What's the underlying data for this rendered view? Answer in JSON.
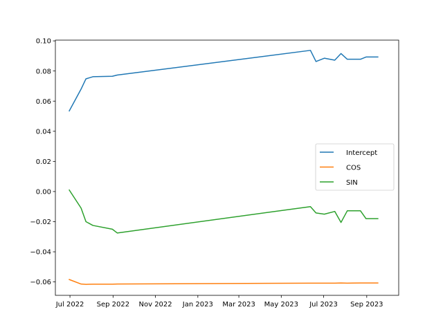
{
  "chart_data": {
    "type": "line",
    "title": "",
    "xlabel": "",
    "ylabel": "",
    "xlim": [
      "2022-06-10",
      "2023-10-17"
    ],
    "ylim": [
      -0.0689,
      0.1005
    ],
    "x_ticks": [
      {
        "date": "2022-07-01",
        "label": "Jul 2022"
      },
      {
        "date": "2022-09-01",
        "label": "Sep 2022"
      },
      {
        "date": "2022-11-01",
        "label": "Nov 2022"
      },
      {
        "date": "2023-01-01",
        "label": "Jan 2023"
      },
      {
        "date": "2023-03-01",
        "label": "Mar 2023"
      },
      {
        "date": "2023-05-01",
        "label": "May 2023"
      },
      {
        "date": "2023-07-01",
        "label": "Jul 2023"
      },
      {
        "date": "2023-09-01",
        "label": "Sep 2023"
      }
    ],
    "y_ticks": [
      {
        "value": 0.1,
        "label": "0.10"
      },
      {
        "value": 0.08,
        "label": "0.08"
      },
      {
        "value": 0.06,
        "label": "0.06"
      },
      {
        "value": 0.04,
        "label": "0.04"
      },
      {
        "value": 0.02,
        "label": "0.02"
      },
      {
        "value": 0.0,
        "label": "0.00"
      },
      {
        "value": -0.02,
        "label": "−0.02"
      },
      {
        "value": -0.04,
        "label": "−0.04"
      },
      {
        "value": -0.06,
        "label": "−0.06"
      }
    ],
    "grid": false,
    "legend_position": "center-right",
    "series": [
      {
        "name": "Intercept",
        "color": "#1f77b4",
        "points": [
          [
            "2022-06-30",
            0.0535
          ],
          [
            "2022-07-17",
            0.068
          ],
          [
            "2022-07-24",
            0.0748
          ],
          [
            "2022-08-03",
            0.0762
          ],
          [
            "2022-08-31",
            0.0765
          ],
          [
            "2022-09-07",
            0.0773
          ],
          [
            "2023-06-12",
            0.0937
          ],
          [
            "2023-06-20",
            0.0863
          ],
          [
            "2023-07-02",
            0.0885
          ],
          [
            "2023-07-17",
            0.0872
          ],
          [
            "2023-07-26",
            0.0916
          ],
          [
            "2023-08-04",
            0.0878
          ],
          [
            "2023-08-23",
            0.0878
          ],
          [
            "2023-08-31",
            0.0893
          ],
          [
            "2023-09-17",
            0.0893
          ]
        ]
      },
      {
        "name": "COS",
        "color": "#ff7f0e",
        "points": [
          [
            "2022-06-30",
            -0.0584
          ],
          [
            "2022-07-17",
            -0.0614
          ],
          [
            "2022-07-24",
            -0.0616
          ],
          [
            "2022-08-03",
            -0.0615
          ],
          [
            "2022-08-31",
            -0.0615
          ],
          [
            "2022-09-07",
            -0.0614
          ],
          [
            "2023-06-12",
            -0.0608
          ],
          [
            "2023-06-20",
            -0.0608
          ],
          [
            "2023-07-02",
            -0.0608
          ],
          [
            "2023-07-17",
            -0.0608
          ],
          [
            "2023-07-26",
            -0.0607
          ],
          [
            "2023-08-04",
            -0.0608
          ],
          [
            "2023-08-23",
            -0.0607
          ],
          [
            "2023-08-31",
            -0.0607
          ],
          [
            "2023-09-17",
            -0.0607
          ]
        ]
      },
      {
        "name": "SIN",
        "color": "#2ca02c",
        "points": [
          [
            "2022-06-30",
            0.001
          ],
          [
            "2022-07-17",
            -0.011
          ],
          [
            "2022-07-24",
            -0.02
          ],
          [
            "2022-08-03",
            -0.0225
          ],
          [
            "2022-08-31",
            -0.025
          ],
          [
            "2022-09-07",
            -0.0275
          ],
          [
            "2023-06-12",
            -0.01
          ],
          [
            "2023-06-20",
            -0.0142
          ],
          [
            "2023-07-02",
            -0.015
          ],
          [
            "2023-07-17",
            -0.0132
          ],
          [
            "2023-07-26",
            -0.0205
          ],
          [
            "2023-08-04",
            -0.0128
          ],
          [
            "2023-08-23",
            -0.0128
          ],
          [
            "2023-08-31",
            -0.018
          ],
          [
            "2023-09-17",
            -0.018
          ]
        ]
      }
    ]
  }
}
